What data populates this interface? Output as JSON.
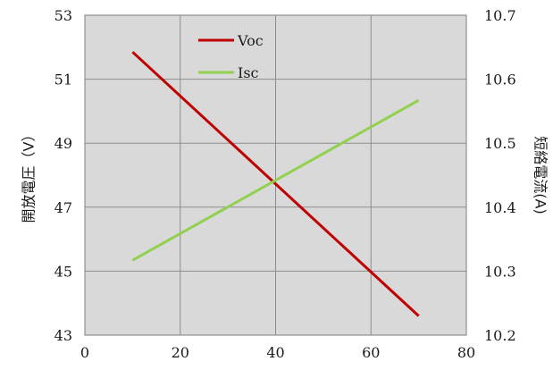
{
  "chart_data": {
    "type": "line",
    "title": "",
    "xlabel": "",
    "ylabel_left": "開放電圧（V）",
    "ylabel_right": "短絡電流(A)",
    "xlim": [
      0,
      80
    ],
    "ylim_left": [
      43,
      53
    ],
    "ylim_right": [
      10.2,
      10.7
    ],
    "x_ticks": [
      "0",
      "20",
      "40",
      "60",
      "80"
    ],
    "y_left_ticks": [
      "43",
      "45",
      "47",
      "49",
      "51",
      "53"
    ],
    "y_right_ticks": [
      "10.2",
      "10.3",
      "10.4",
      "10.5",
      "10.6",
      "10.7"
    ],
    "grid": true,
    "legend_position": "top-center",
    "series": [
      {
        "name": "Voc",
        "axis": "left",
        "color": "#c00000",
        "x": [
          10,
          70
        ],
        "y": [
          51.85,
          43.6
        ]
      },
      {
        "name": "Isc",
        "axis": "right",
        "color": "#92d050",
        "x": [
          10,
          70
        ],
        "y": [
          10.317,
          10.567
        ]
      }
    ]
  }
}
